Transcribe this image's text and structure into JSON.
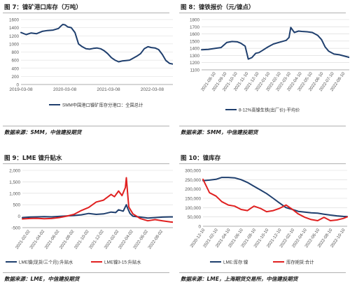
{
  "panels": [
    {
      "title": "图 7：镍矿港口库存（万吨）",
      "source": "数据来源：SMM，中信建投期货"
    },
    {
      "title": "图 8：镍铁报价（元/镍点）",
      "source": "数据来源：SMM，中信建投期货"
    },
    {
      "title": "图 9：LME 镍升贴水",
      "source": "数据来源：LME，中信建投期货"
    },
    {
      "title": "图 10：镍库存",
      "source": "数据来源：LME，上海期货交易所，中信建投期货"
    }
  ],
  "colors": {
    "navy": "#1f3f6e",
    "red": "#e02020",
    "grid": "#d8d8d8",
    "axis": "#555555"
  },
  "chart_data": [
    {
      "type": "line",
      "ylim": [
        0,
        1600
      ],
      "yticks": [
        0,
        200,
        400,
        600,
        800,
        1000,
        1200,
        1400,
        1600
      ],
      "xlim": [
        "2019-03-08",
        "2022-10-20"
      ],
      "xticks": [
        "2019-03-08",
        "2020-03-08",
        "2021-03-08",
        "2022-03-08"
      ],
      "series": [
        {
          "name": "SMM中国港口镍矿库存分港口：全国总计",
          "x": [
            "2019-03-08",
            "2019-04-20",
            "2019-06-01",
            "2019-07-15",
            "2019-09-01",
            "2019-10-15",
            "2019-12-01",
            "2020-01-15",
            "2020-02-01",
            "2020-02-20",
            "2020-03-10",
            "2020-04-01",
            "2020-05-01",
            "2020-06-01",
            "2020-07-01",
            "2020-08-01",
            "2020-09-01",
            "2020-10-01",
            "2020-11-01",
            "2020-12-01",
            "2021-01-01",
            "2021-02-01",
            "2021-03-01",
            "2021-04-01",
            "2021-05-01",
            "2021-06-01",
            "2021-07-01",
            "2021-08-01",
            "2021-09-01",
            "2021-10-01",
            "2021-11-01",
            "2021-12-01",
            "2022-01-01",
            "2022-02-01",
            "2022-03-01",
            "2022-04-01",
            "2022-05-01",
            "2022-06-01",
            "2022-07-01",
            "2022-08-01",
            "2022-09-01",
            "2022-10-01",
            "2022-10-20"
          ],
          "values": [
            1280,
            1230,
            1270,
            1250,
            1310,
            1330,
            1340,
            1380,
            1430,
            1480,
            1470,
            1420,
            1400,
            1280,
            1000,
            930,
            880,
            870,
            890,
            900,
            880,
            830,
            760,
            660,
            600,
            560,
            580,
            590,
            600,
            650,
            700,
            760,
            880,
            930,
            910,
            900,
            860,
            740,
            590,
            520,
            500,
            620,
            660
          ]
        }
      ]
    },
    {
      "type": "line",
      "ylim": [
        1100,
        1800
      ],
      "yticks": [
        1100,
        1200,
        1300,
        1400,
        1500,
        1600,
        1700,
        1800
      ],
      "xlim": [
        "2021-07-01",
        "2022-09-25"
      ],
      "xticks": [
        "2021-08-10",
        "2021-09-10",
        "2021-10-10",
        "2021-11-10",
        "2021-12-10",
        "2022-01-10",
        "2022-02-10",
        "2022-03-10",
        "2022-04-10",
        "2022-05-10",
        "2022-06-10",
        "2022-07-10",
        "2022-08-10"
      ],
      "series": [
        {
          "name": "8-12%高镍生铁(出厂价)-平均价",
          "x": [
            "2021-07-01",
            "2021-07-20",
            "2021-08-10",
            "2021-08-25",
            "2021-09-10",
            "2021-09-25",
            "2021-10-10",
            "2021-10-20",
            "2021-11-01",
            "2021-11-10",
            "2021-11-20",
            "2021-12-01",
            "2021-12-10",
            "2021-12-20",
            "2022-01-05",
            "2022-01-20",
            "2022-02-10",
            "2022-02-25",
            "2022-03-05",
            "2022-03-10",
            "2022-03-20",
            "2022-04-01",
            "2022-04-10",
            "2022-04-25",
            "2022-05-10",
            "2022-05-25",
            "2022-06-05",
            "2022-06-15",
            "2022-06-25",
            "2022-07-10",
            "2022-07-25",
            "2022-08-10",
            "2022-08-25",
            "2022-09-10",
            "2022-09-20"
          ],
          "values": [
            1380,
            1385,
            1400,
            1410,
            1480,
            1495,
            1490,
            1470,
            1430,
            1250,
            1270,
            1330,
            1340,
            1370,
            1420,
            1460,
            1490,
            1510,
            1550,
            1690,
            1620,
            1640,
            1635,
            1630,
            1620,
            1580,
            1520,
            1420,
            1360,
            1320,
            1310,
            1290,
            1270,
            1260,
            1280
          ]
        }
      ]
    },
    {
      "type": "line",
      "ylim": [
        -500,
        2000
      ],
      "yticks": [
        -500,
        0,
        500,
        1000,
        1500,
        2000
      ],
      "xlim": [
        "2021-01-01",
        "2022-10-20"
      ],
      "xticks": [
        "2021-02-02",
        "2021-04-02",
        "2021-06-02",
        "2021-08-02",
        "2021-10-02",
        "2021-12-02",
        "2022-02-02",
        "2022-04-02",
        "2022-06-02",
        "2022-08-02"
      ],
      "series": [
        {
          "name": "LME镍(现货/三个月):升贴水",
          "color_key": "navy",
          "x": [
            "2021-01-01",
            "2021-02-01",
            "2021-03-01",
            "2021-04-01",
            "2021-05-01",
            "2021-06-01",
            "2021-07-01",
            "2021-08-01",
            "2021-09-01",
            "2021-10-01",
            "2021-11-01",
            "2021-12-01",
            "2022-01-01",
            "2022-01-20",
            "2022-02-01",
            "2022-02-20",
            "2022-03-05",
            "2022-03-10",
            "2022-03-20",
            "2022-04-01",
            "2022-05-01",
            "2022-06-01",
            "2022-07-01",
            "2022-08-01",
            "2022-09-01",
            "2022-10-01",
            "2022-10-20"
          ],
          "values": [
            -60,
            -40,
            -30,
            -20,
            -30,
            -10,
            10,
            30,
            60,
            120,
            80,
            100,
            180,
            160,
            280,
            220,
            500,
            350,
            120,
            0,
            -40,
            -80,
            -60,
            -40,
            -30,
            -30,
            -20
          ]
        },
        {
          "name": "LME镍3-15:升贴水",
          "color_key": "red",
          "x": [
            "2021-01-01",
            "2021-02-01",
            "2021-03-01",
            "2021-04-01",
            "2021-05-01",
            "2021-06-01",
            "2021-07-01",
            "2021-08-01",
            "2021-09-01",
            "2021-10-01",
            "2021-11-01",
            "2021-12-01",
            "2022-01-01",
            "2022-01-15",
            "2022-02-01",
            "2022-02-15",
            "2022-03-01",
            "2022-03-05",
            "2022-03-10",
            "2022-03-15",
            "2022-04-01",
            "2022-05-01",
            "2022-06-01",
            "2022-07-01",
            "2022-08-01",
            "2022-09-01",
            "2022-10-01",
            "2022-10-20"
          ],
          "values": [
            -120,
            -100,
            -90,
            -110,
            -100,
            -60,
            0,
            80,
            250,
            380,
            620,
            700,
            950,
            850,
            1100,
            900,
            1250,
            1680,
            1000,
            400,
            100,
            -100,
            -200,
            -150,
            -200,
            -250,
            -280,
            -300
          ]
        }
      ]
    },
    {
      "type": "line",
      "ylim": [
        0,
        300000
      ],
      "yticks": [
        0,
        50000,
        100000,
        150000,
        200000,
        250000,
        300000
      ],
      "y2lim": [
        0,
        25000
      ],
      "y2ticks": [
        0,
        5000,
        10000,
        15000,
        20000,
        25000
      ],
      "xlim": [
        "2020-12-01",
        "2022-10-20"
      ],
      "xticks": [
        "2020-12-10",
        "2021-02-10",
        "2021-04-10",
        "2021-06-10",
        "2021-08-10",
        "2021-10-10",
        "2021-12-10",
        "2022-02-10",
        "2022-04-10",
        "2022-06-10",
        "2022-08-10",
        "2022-10-10"
      ],
      "series": [
        {
          "name": "LME:库存:镍",
          "axis": "left",
          "color_key": "navy",
          "x": [
            "2020-12-01",
            "2021-01-01",
            "2021-02-01",
            "2021-03-01",
            "2021-04-01",
            "2021-05-01",
            "2021-06-01",
            "2021-07-01",
            "2021-08-01",
            "2021-09-01",
            "2021-10-01",
            "2021-11-01",
            "2021-12-01",
            "2022-01-01",
            "2022-02-01",
            "2022-03-01",
            "2022-04-01",
            "2022-05-01",
            "2022-06-01",
            "2022-07-01",
            "2022-08-01",
            "2022-09-01",
            "2022-10-01",
            "2022-10-20"
          ],
          "values": [
            245000,
            248000,
            252000,
            262000,
            262000,
            260000,
            250000,
            235000,
            215000,
            195000,
            175000,
            150000,
            125000,
            100000,
            90000,
            80000,
            76000,
            72000,
            70000,
            65000,
            60000,
            56000,
            53000,
            52000
          ]
        },
        {
          "name": "库存期货:合计",
          "axis": "right",
          "color_key": "red",
          "x": [
            "2020-12-01",
            "2021-01-01",
            "2021-02-01",
            "2021-03-01",
            "2021-04-01",
            "2021-05-01",
            "2021-06-01",
            "2021-07-01",
            "2021-08-01",
            "2021-09-01",
            "2021-10-01",
            "2021-11-01",
            "2021-12-01",
            "2022-01-01",
            "2022-02-01",
            "2022-03-01",
            "2022-04-01",
            "2022-05-01",
            "2022-06-01",
            "2022-07-01",
            "2022-08-01",
            "2022-09-01",
            "2022-10-01",
            "2022-10-20"
          ],
          "values": [
            21000,
            15000,
            13500,
            11000,
            9500,
            9000,
            7500,
            7000,
            9000,
            8000,
            6500,
            7000,
            8000,
            9500,
            7500,
            5500,
            4000,
            3000,
            2500,
            4000,
            2500,
            2800,
            3500,
            4200
          ]
        }
      ]
    }
  ]
}
